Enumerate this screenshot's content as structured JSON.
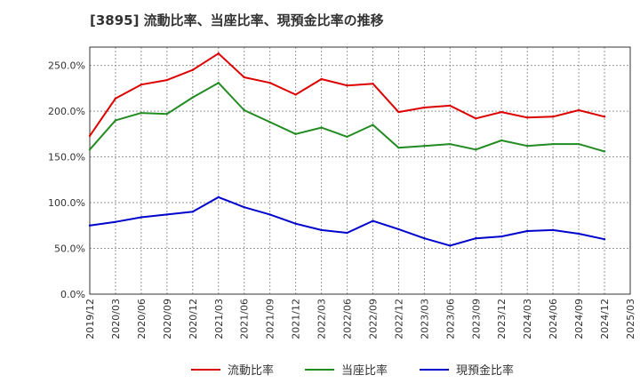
{
  "chart_data": {
    "type": "line",
    "title": "[3895]  流動比率、当座比率、現預金比率の推移",
    "xlabel": "",
    "ylabel": "",
    "ylim": [
      0,
      270
    ],
    "yticks": [
      0,
      50,
      100,
      150,
      200,
      250
    ],
    "ytick_labels": [
      "0.0%",
      "50.0%",
      "100.0%",
      "150.0%",
      "200.0%",
      "250.0%"
    ],
    "x": [
      "2019/12",
      "2020/03",
      "2020/06",
      "2020/09",
      "2020/12",
      "2021/03",
      "2021/06",
      "2021/09",
      "2021/12",
      "2022/03",
      "2022/06",
      "2022/09",
      "2022/12",
      "2023/03",
      "2023/06",
      "2023/09",
      "2023/12",
      "2024/03",
      "2024/06",
      "2024/09",
      "2024/12"
    ],
    "x_axis_labels": [
      "2019/12",
      "2020/03",
      "2020/06",
      "2020/09",
      "2020/12",
      "2021/03",
      "2021/06",
      "2021/09",
      "2021/12",
      "2022/03",
      "2022/06",
      "2022/09",
      "2022/12",
      "2023/03",
      "2023/06",
      "2023/09",
      "2023/12",
      "2024/03",
      "2024/06",
      "2024/09",
      "2024/12",
      "2025/03"
    ],
    "grid": true,
    "legend": "bottom",
    "series": [
      {
        "name": "流動比率",
        "color": "#dd0000",
        "values": [
          173,
          214,
          229,
          234,
          245,
          263,
          237,
          231,
          218,
          235,
          228,
          230,
          199,
          204,
          206,
          192,
          199,
          193,
          194,
          201,
          194
        ]
      },
      {
        "name": "当座比率",
        "color": "#228b22",
        "values": [
          158,
          190,
          198,
          197,
          215,
          231,
          201,
          188,
          175,
          182,
          172,
          185,
          160,
          162,
          164,
          158,
          168,
          162,
          164,
          164,
          156
        ]
      },
      {
        "name": "現預金比率",
        "color": "#0000cc",
        "values": [
          75,
          79,
          84,
          87,
          90,
          106,
          95,
          87,
          77,
          70,
          67,
          80,
          71,
          61,
          53,
          61,
          63,
          69,
          70,
          66,
          60
        ]
      }
    ]
  }
}
